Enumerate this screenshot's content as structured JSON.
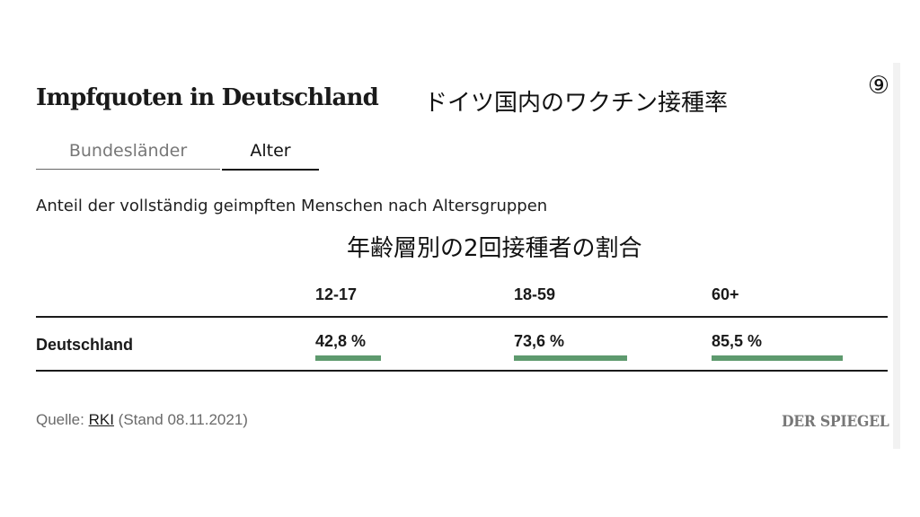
{
  "header": {
    "title": "Impfquoten in Deutschland",
    "jp_title": "ドイツ国内のワクチン接種率",
    "badge": "⑨"
  },
  "tabs": [
    {
      "label": "Bundesländer",
      "active": false
    },
    {
      "label": "Alter",
      "active": true
    }
  ],
  "subtitle": "Anteil der vollständig geimpften Menschen nach Altersgruppen",
  "jp_subtitle": "年齢層別の2回接種者の割合",
  "table": {
    "columns": [
      "12-17",
      "18-59",
      "60+"
    ],
    "rows": [
      {
        "label": "Deutschland",
        "values": [
          "42,8 %",
          "73,6 %",
          "85,5 %"
        ]
      }
    ]
  },
  "chart_data": {
    "type": "bar",
    "categories": [
      "12-17",
      "18-59",
      "60+"
    ],
    "series": [
      {
        "name": "Deutschland",
        "values": [
          42.8,
          73.6,
          85.5
        ]
      }
    ],
    "ylim": [
      0,
      100
    ],
    "value_labels": [
      "42,8 %",
      "73,6 %",
      "85,5 %"
    ]
  },
  "footer": {
    "source_prefix": "Quelle: ",
    "source_link": "RKI",
    "source_suffix": " (Stand 08.11.2021)",
    "logo": "DER SPIEGEL"
  },
  "colors": {
    "bar": "#5e9a6e",
    "text": "#1a1a1a",
    "muted": "#6a6a6a"
  }
}
